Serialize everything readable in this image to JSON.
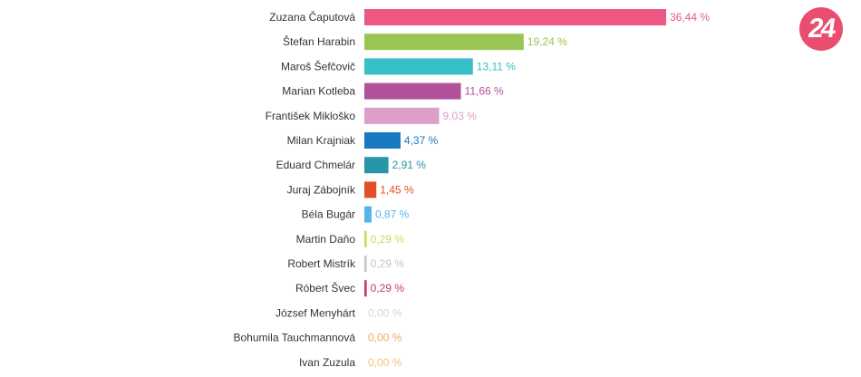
{
  "logo": {
    "text": "24"
  },
  "chart_data": {
    "type": "bar",
    "orientation": "horizontal",
    "unit": "%",
    "xlim": [
      0,
      50
    ],
    "grid": false,
    "categories": [
      "Zuzana Čaputová",
      "Štefan Harabin",
      "Maroš Šefčovič",
      "Marian Kotleba",
      "František Mikloško",
      "Milan Krajniak",
      "Eduard Chmelár",
      "Juraj Zábojník",
      "Béla Bugár",
      "Martin Daňo",
      "Robert Mistrík",
      "Róbert Švec",
      "József Menyhárt",
      "Bohumila Tauchmannová",
      "Ivan Zuzula"
    ],
    "values": [
      36.44,
      19.24,
      13.11,
      11.66,
      9.03,
      4.37,
      2.91,
      1.45,
      0.87,
      0.29,
      0.29,
      0.29,
      0.0,
      0.0,
      0.0
    ],
    "value_labels": [
      "36,44 %",
      "19,24 %",
      "13,11 %",
      "11,66 %",
      "9,03 %",
      "4,37 %",
      "2,91 %",
      "1,45 %",
      "0,87 %",
      "0,29 %",
      "0,29 %",
      "0,29 %",
      "0,00 %",
      "0,00 %",
      "0,00 %"
    ],
    "colors": [
      "#ec5883",
      "#98c554",
      "#37bfc7",
      "#b0529c",
      "#dca0c8",
      "#1878c2",
      "#2896a6",
      "#e2502a",
      "#54b5ea",
      "#c9dc5c",
      "#c6c6cc",
      "#c63a5c",
      "#d6d6d6",
      "#f3a85a",
      "#f6c279"
    ]
  }
}
